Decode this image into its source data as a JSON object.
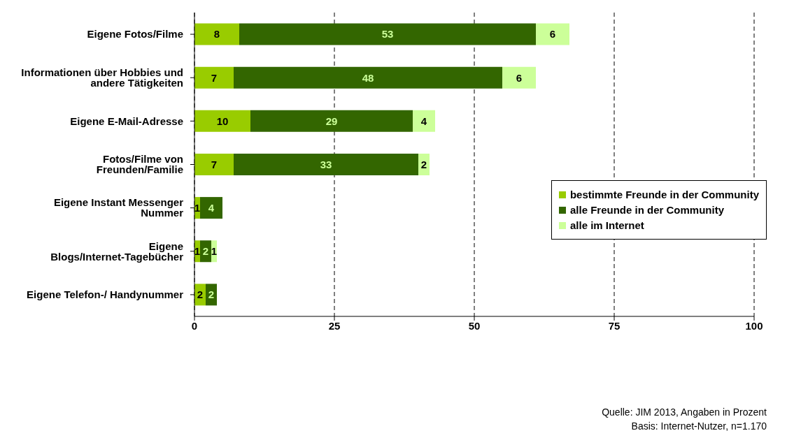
{
  "chart_data": {
    "type": "bar",
    "orientation": "horizontal",
    "stacked": true,
    "categories": [
      "Eigene Fotos/Filme",
      "Informationen über Hobbies und andere Tätigkeiten",
      "Eigene E-Mail-Adresse",
      "Fotos/Filme von Freunden/Familie",
      "Eigene Instant Messenger Nummer",
      "Eigene Blogs/Internet-Tagebücher",
      "Eigene Telefon-/ Handynummer"
    ],
    "series": [
      {
        "name": "bestimmte Freunde in der Community",
        "color": "#99cc00",
        "values": [
          8,
          7,
          10,
          7,
          1,
          1,
          2
        ]
      },
      {
        "name": "alle Freunde in der Community",
        "color": "#336600",
        "values": [
          53,
          48,
          29,
          33,
          4,
          2,
          2
        ]
      },
      {
        "name": "alle im Internet",
        "color": "#ccff99",
        "values": [
          6,
          6,
          4,
          2,
          null,
          1,
          null
        ]
      }
    ],
    "xlim": [
      0,
      100
    ],
    "xticks": [
      0,
      25,
      50,
      75,
      100
    ],
    "grid": "x",
    "legend": "right",
    "data_labels": true,
    "annotations": [
      "Quelle: JIM 2013, Angaben in Prozent",
      "Basis: Internet-Nutzer, n=1.170"
    ]
  }
}
